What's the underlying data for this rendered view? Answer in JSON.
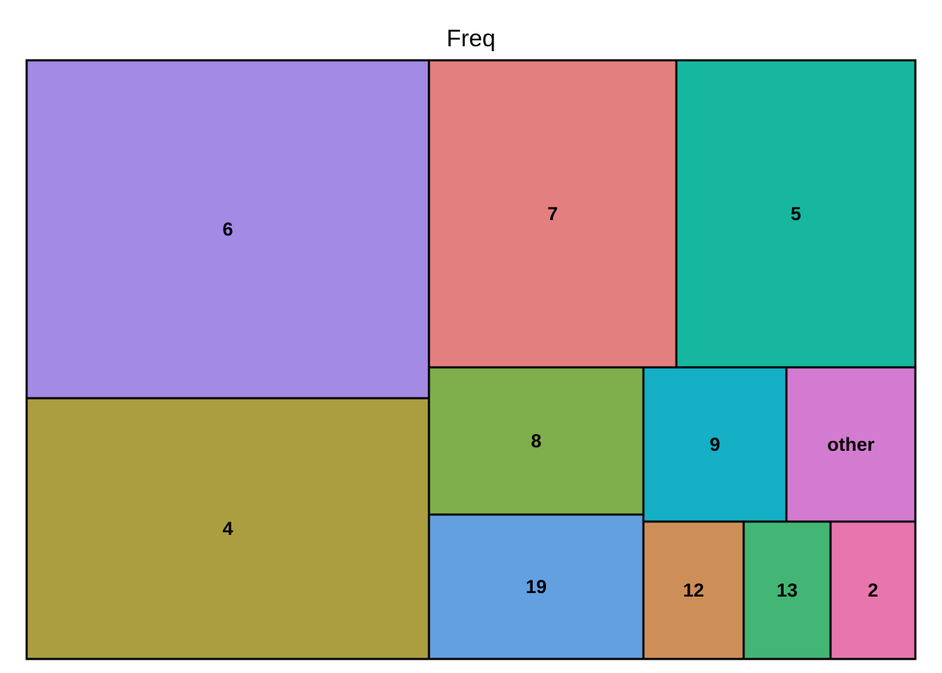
{
  "chart_data": {
    "type": "treemap",
    "title": "Freq",
    "tiles": [
      {
        "label": "6",
        "color": "#a28ae5"
      },
      {
        "label": "4",
        "color": "#aa9e40"
      },
      {
        "label": "7",
        "color": "#e37f7f"
      },
      {
        "label": "5",
        "color": "#17b79f"
      },
      {
        "label": "8",
        "color": "#7fae4d"
      },
      {
        "label": "19",
        "color": "#63a0e0"
      },
      {
        "label": "9",
        "color": "#15afc6"
      },
      {
        "label": "other",
        "color": "#d27bd0"
      },
      {
        "label": "12",
        "color": "#ce8e57"
      },
      {
        "label": "13",
        "color": "#43b574"
      },
      {
        "label": "2",
        "color": "#e776ae"
      }
    ]
  }
}
